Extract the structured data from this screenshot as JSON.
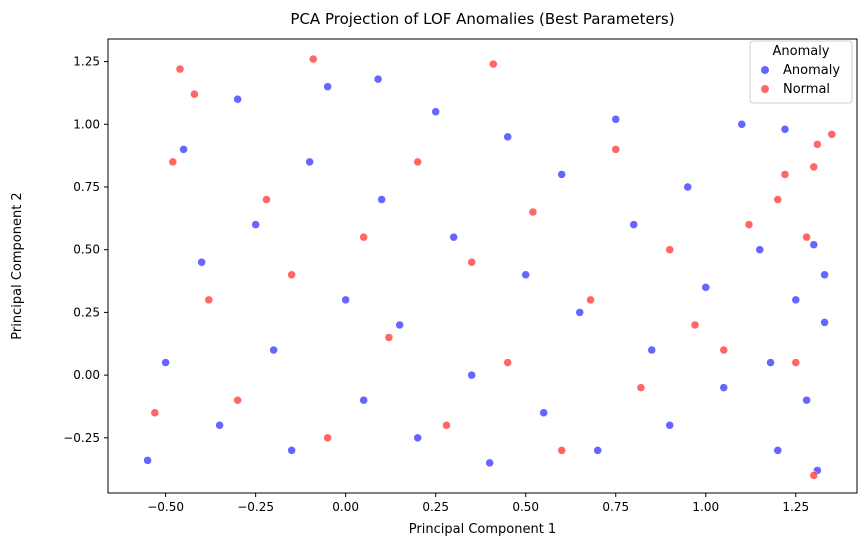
{
  "chart_data": {
    "type": "scatter",
    "title": "PCA Projection of LOF Anomalies (Best Parameters)",
    "xlabel": "Principal Component 1",
    "ylabel": "Principal Component 2",
    "xlim": [
      -0.66,
      1.42
    ],
    "ylim": [
      -0.47,
      1.34
    ],
    "xticks": [
      -0.5,
      -0.25,
      0.0,
      0.25,
      0.5,
      0.75,
      1.0,
      1.25
    ],
    "yticks": [
      -0.25,
      0.0,
      0.25,
      0.5,
      0.75,
      1.0,
      1.25
    ],
    "xtick_labels": [
      "−0.50",
      "−0.25",
      "0.00",
      "0.25",
      "0.50",
      "0.75",
      "1.00",
      "1.25"
    ],
    "ytick_labels": [
      "−0.25",
      "0.00",
      "0.25",
      "0.50",
      "0.75",
      "1.00",
      "1.25"
    ],
    "grid": false,
    "legend": {
      "title": "Anomaly",
      "placement": "top-right",
      "entries": [
        {
          "label": "Anomaly",
          "color": "#0000ff"
        },
        {
          "label": "Normal",
          "color": "#ff0000"
        }
      ]
    },
    "series": [
      {
        "name": "Anomaly",
        "color": "#0000ff",
        "points": [
          [
            -0.55,
            -0.34
          ],
          [
            -0.5,
            0.05
          ],
          [
            -0.45,
            0.9
          ],
          [
            -0.4,
            0.45
          ],
          [
            -0.35,
            -0.2
          ],
          [
            -0.3,
            1.1
          ],
          [
            -0.25,
            0.6
          ],
          [
            -0.2,
            0.1
          ],
          [
            -0.15,
            -0.3
          ],
          [
            -0.1,
            0.85
          ],
          [
            -0.05,
            1.15
          ],
          [
            0.0,
            0.3
          ],
          [
            0.05,
            -0.1
          ],
          [
            0.09,
            1.18
          ],
          [
            0.1,
            0.7
          ],
          [
            0.15,
            0.2
          ],
          [
            0.2,
            -0.25
          ],
          [
            0.25,
            1.05
          ],
          [
            0.3,
            0.55
          ],
          [
            0.35,
            0.0
          ],
          [
            0.4,
            -0.35
          ],
          [
            0.45,
            0.95
          ],
          [
            0.5,
            0.4
          ],
          [
            0.55,
            -0.15
          ],
          [
            0.6,
            0.8
          ],
          [
            0.65,
            0.25
          ],
          [
            0.7,
            -0.3
          ],
          [
            0.75,
            1.02
          ],
          [
            0.8,
            0.6
          ],
          [
            0.85,
            0.1
          ],
          [
            0.9,
            -0.2
          ],
          [
            0.95,
            0.75
          ],
          [
            1.0,
            0.35
          ],
          [
            1.05,
            -0.05
          ],
          [
            1.1,
            1.0
          ],
          [
            1.15,
            0.5
          ],
          [
            1.18,
            0.05
          ],
          [
            1.2,
            -0.3
          ],
          [
            1.22,
            0.98
          ],
          [
            1.25,
            0.3
          ],
          [
            1.28,
            -0.1
          ],
          [
            1.3,
            0.52
          ],
          [
            1.33,
            0.4
          ],
          [
            1.33,
            0.21
          ],
          [
            1.31,
            -0.38
          ]
        ]
      },
      {
        "name": "Normal",
        "color": "#ff0000",
        "points": [
          [
            -0.53,
            -0.15
          ],
          [
            -0.48,
            0.85
          ],
          [
            -0.42,
            1.12
          ],
          [
            -0.46,
            1.22
          ],
          [
            -0.38,
            0.3
          ],
          [
            -0.3,
            -0.1
          ],
          [
            -0.22,
            0.7
          ],
          [
            -0.15,
            0.4
          ],
          [
            -0.09,
            1.26
          ],
          [
            -0.05,
            -0.25
          ],
          [
            0.05,
            0.55
          ],
          [
            0.12,
            0.15
          ],
          [
            0.2,
            0.85
          ],
          [
            0.28,
            -0.2
          ],
          [
            0.35,
            0.45
          ],
          [
            0.41,
            1.24
          ],
          [
            0.45,
            0.05
          ],
          [
            0.52,
            0.65
          ],
          [
            0.6,
            -0.3
          ],
          [
            0.68,
            0.3
          ],
          [
            0.75,
            0.9
          ],
          [
            0.82,
            -0.05
          ],
          [
            0.9,
            0.5
          ],
          [
            0.97,
            0.2
          ],
          [
            1.05,
            0.1
          ],
          [
            1.12,
            0.6
          ],
          [
            1.2,
            0.7
          ],
          [
            1.22,
            0.8
          ],
          [
            1.25,
            0.05
          ],
          [
            1.3,
            0.83
          ],
          [
            1.31,
            0.92
          ],
          [
            1.35,
            0.96
          ],
          [
            1.3,
            -0.4
          ],
          [
            1.28,
            0.55
          ]
        ]
      }
    ]
  }
}
